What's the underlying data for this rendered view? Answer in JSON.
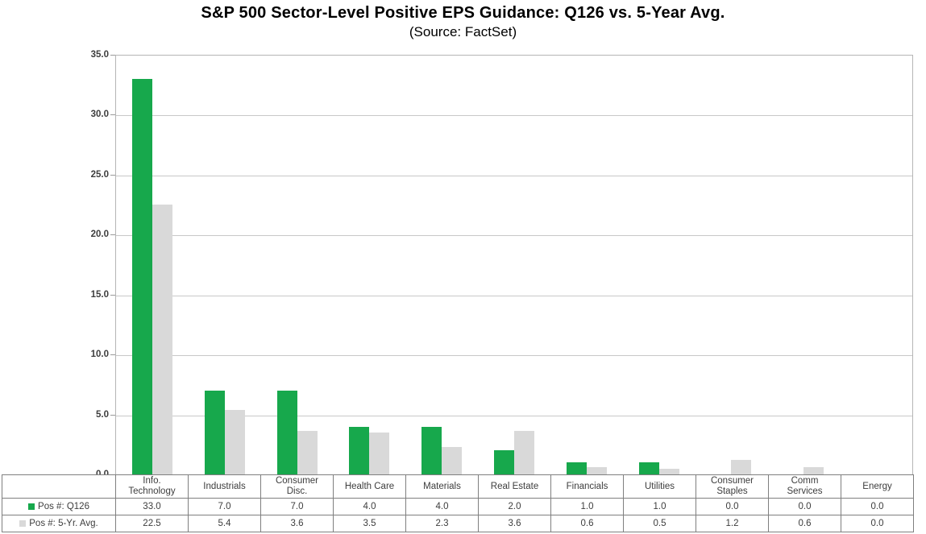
{
  "title": "S&P 500 Sector-Level Positive EPS Guidance: Q126 vs. 5-Year Avg.",
  "subtitle": "(Source: FactSet)",
  "colors": {
    "q126_green": "#17a84c",
    "avg_gray": "#d9d9d9",
    "gridline": "#c8c8c8",
    "table_border": "#7f7f7f",
    "label_text": "#3d3d3d"
  },
  "chart_data": {
    "type": "bar",
    "title": "S&P 500 Sector-Level Positive EPS Guidance: Q126 vs. 5-Year Avg.",
    "subtitle": "(Source: FactSet)",
    "categories": [
      "Info. Technology",
      "Industrials",
      "Consumer Disc.",
      "Health Care",
      "Materials",
      "Real Estate",
      "Financials",
      "Utilities",
      "Consumer Staples",
      "Comm Services",
      "Energy"
    ],
    "category_label_lines": [
      [
        "Info.",
        "Technology"
      ],
      [
        "Industrials"
      ],
      [
        "Consumer",
        "Disc."
      ],
      [
        "Health Care"
      ],
      [
        "Materials"
      ],
      [
        "Real Estate"
      ],
      [
        "Financials"
      ],
      [
        "Utilities"
      ],
      [
        "Consumer",
        "Staples"
      ],
      [
        "Comm",
        "Services"
      ],
      [
        "Energy"
      ]
    ],
    "series": [
      {
        "name": "Pos #: Q126",
        "color_key": "q126_green",
        "key": "q126",
        "values": [
          33.0,
          7.0,
          7.0,
          4.0,
          4.0,
          2.0,
          1.0,
          1.0,
          0.0,
          0.0,
          0.0
        ]
      },
      {
        "name": "Pos #: 5-Yr. Avg.",
        "color_key": "avg_gray",
        "key": "5yr-avg",
        "values": [
          22.5,
          5.4,
          3.6,
          3.5,
          2.3,
          3.6,
          0.6,
          0.5,
          1.2,
          0.6,
          0.0
        ]
      }
    ],
    "xlabel": "",
    "ylabel": "",
    "ylim": [
      0,
      35
    ],
    "ytick_step": 5,
    "ytick_labels": [
      "0.0",
      "5.0",
      "10.0",
      "15.0",
      "20.0",
      "25.0",
      "30.0",
      "35.0"
    ],
    "grid": true,
    "legend_position": "table-left",
    "value_decimals": 1
  }
}
